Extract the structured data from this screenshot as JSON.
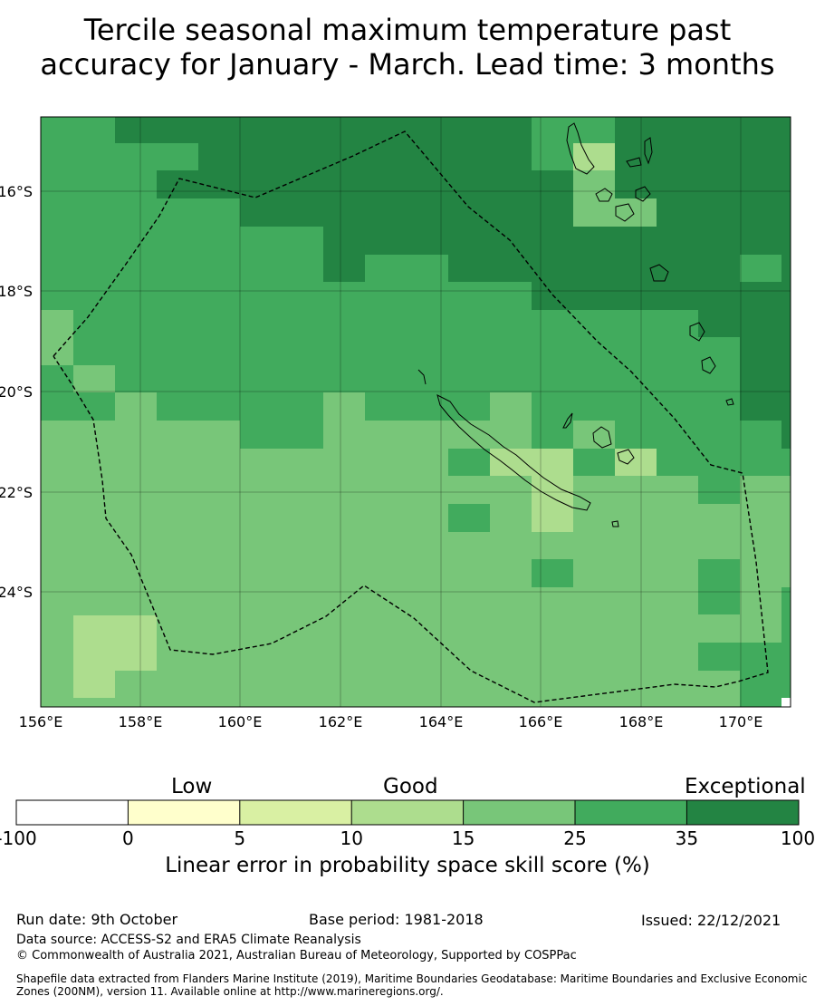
{
  "title_line1": "Tercile seasonal maximum temperature past",
  "title_line2": "accuracy for January - March. Lead time: 3 months",
  "lat_labels": [
    "16°S",
    "18°S",
    "20°S",
    "22°S",
    "24°S"
  ],
  "lon_labels": [
    "156°E",
    "158°E",
    "160°E",
    "162°E",
    "164°E",
    "166°E",
    "168°E",
    "170°E"
  ],
  "colorbar": {
    "categories": [
      "Low",
      "Good",
      "Exceptional"
    ],
    "ticks": [
      "-100",
      "0",
      "5",
      "10",
      "15",
      "25",
      "35",
      "100"
    ],
    "colors": [
      "#ffffff",
      "#ffffcc",
      "#d9f0a3",
      "#addd8e",
      "#78c679",
      "#41ab5d",
      "#238443"
    ],
    "label": "Linear error in probability space skill score (%)"
  },
  "footer": {
    "run_date": "Run date: 9th October",
    "base_period": "Base period: 1981-2018",
    "issued": "Issued: 22/12/2021",
    "data_source": "Data source: ACCESS-S2 and ERA5 Climate Reanalysis",
    "copyright": "© Commonwealth of Australia 2021, Australian Bureau of Meteorology, Supported by COSPPac",
    "shapefile_line1": "Shapefile data extracted from Flanders Marine Institute (2019), Maritime Boundaries Geodatabase: Maritime Boundaries and Exclusive Economic",
    "shapefile_line2": "Zones (200NM), version 11. Available online at http://www.marineregions.org/."
  }
}
